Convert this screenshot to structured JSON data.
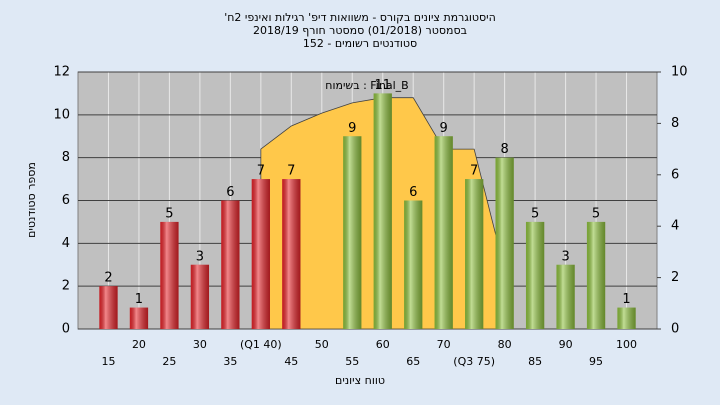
{
  "chart_data": {
    "type": "bar",
    "title": [
      "היסטוגרמת ציונים בקורס - משוואות דיפ' רגילות ואינפי 2ח'",
      "בסמסטר (01/2018) סמסטר חורף 2018/19",
      "סטודנטים רשומים - 152"
    ],
    "annotation": "בשימוח : Final_B",
    "xlabel": "טווח ציונים",
    "ylabel": "מספר סטודנטים",
    "categories": [
      "15",
      "20",
      "25",
      "30",
      "35",
      "(Q1 40)",
      "45",
      "50",
      "55",
      "60",
      "65",
      "70",
      "(Q3 75)",
      "80",
      "85",
      "90",
      "95",
      "100"
    ],
    "series": [
      {
        "type": "bar",
        "values": [
          2,
          1,
          5,
          3,
          6,
          7,
          7,
          null,
          9,
          11,
          6,
          9,
          7,
          8,
          5,
          3,
          5,
          1
        ],
        "colors": [
          "#e8242a",
          "#e8242a",
          "#e8242a",
          "#e8242a",
          "#e8242a",
          "#e8242a",
          "#e8242a",
          "#e8242a",
          "#8fc23e",
          "#8fc23e",
          "#8fc23e",
          "#8fc23e",
          "#8fc23e",
          "#8fc23e",
          "#8fc23e",
          "#8fc23e",
          "#8fc23e",
          "#8fc23e"
        ]
      },
      {
        "type": "area",
        "axis": "y2",
        "color": "#ffc84a",
        "values": [
          null,
          null,
          null,
          null,
          null,
          7.0,
          7.9,
          8.4,
          8.8,
          9.0,
          9.0,
          7.0,
          7.0,
          2.3,
          null,
          null,
          null,
          null
        ]
      }
    ],
    "ylim": [
      0,
      12
    ],
    "yticks": [
      0,
      2,
      4,
      6,
      8,
      10,
      12
    ],
    "y2lim": [
      0,
      10
    ],
    "y2ticks": [
      0,
      2,
      4,
      6,
      8,
      10
    ],
    "grid": true
  }
}
